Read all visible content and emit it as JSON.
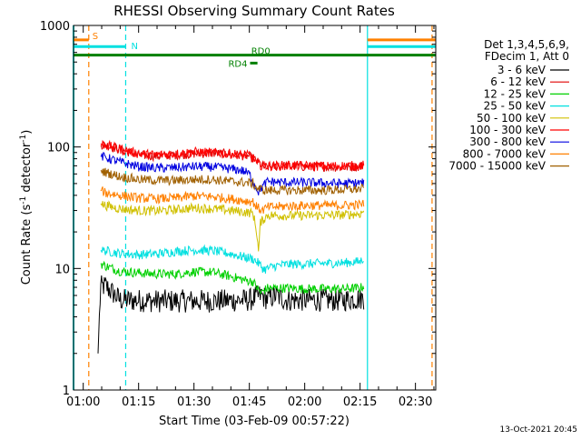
{
  "chart_data": {
    "type": "line",
    "title": "RHESSI Observing Summary Count Rates",
    "xlabel": "Start Time (03-Feb-09 00:57:22)",
    "ylabel_main": "Count Rate (s",
    "ylabel_sup1": "-1",
    "ylabel_mid": " detector",
    "ylabel_sup2": "-1",
    "ylabel_end": ")",
    "yscale": "log",
    "xlim": [
      57.37,
      155.5
    ],
    "ylim": [
      1,
      1000
    ],
    "x_ticks": [
      {
        "v": 60,
        "label": "01:00"
      },
      {
        "v": 75,
        "label": "01:15"
      },
      {
        "v": 90,
        "label": "01:30"
      },
      {
        "v": 105,
        "label": "01:45"
      },
      {
        "v": 120,
        "label": "02:00"
      },
      {
        "v": 135,
        "label": "02:15"
      },
      {
        "v": 150,
        "label": "02:30"
      }
    ],
    "y_ticks": [
      {
        "v": 1,
        "label": "1"
      },
      {
        "v": 10,
        "label": "10"
      },
      {
        "v": 100,
        "label": "100"
      },
      {
        "v": 1000,
        "label": "1000"
      }
    ],
    "legend": {
      "header": [
        "Det 1,3,4,5,6,9,",
        "FDecim 1, Att 0"
      ],
      "placement": "right"
    },
    "series": [
      {
        "name": "3 - 6 keV",
        "color": "#000000",
        "points": [
          [
            64,
            2
          ],
          [
            64.7,
            7
          ],
          [
            66,
            7.2
          ],
          [
            70,
            5.5
          ],
          [
            80,
            5.4
          ],
          [
            95,
            5.4
          ],
          [
            105,
            5.5
          ],
          [
            108,
            6.0
          ],
          [
            110,
            5.6
          ],
          [
            112,
            6.0
          ],
          [
            115,
            5.5
          ],
          [
            125,
            5.5
          ],
          [
            130,
            5.5
          ],
          [
            136,
            5.7
          ]
        ]
      },
      {
        "name": "6 - 12 keV",
        "color": "#e00000",
        "points": [
          [
            64.7,
            102
          ],
          [
            66,
            104
          ],
          [
            70,
            95
          ],
          [
            75,
            86
          ],
          [
            80,
            84
          ],
          [
            85,
            86
          ],
          [
            90,
            88
          ],
          [
            95,
            89
          ],
          [
            100,
            87
          ],
          [
            103,
            85
          ],
          [
            105,
            84
          ],
          [
            107,
            76
          ],
          [
            109,
            68
          ],
          [
            112,
            69
          ],
          [
            115,
            70
          ],
          [
            120,
            69
          ],
          [
            125,
            69
          ],
          [
            130,
            68
          ],
          [
            135,
            69
          ],
          [
            136,
            71
          ]
        ]
      },
      {
        "name": "12 - 25 keV",
        "color": "#00d000",
        "points": [
          [
            64.7,
            11
          ],
          [
            66,
            10.5
          ],
          [
            70,
            9.5
          ],
          [
            75,
            9.2
          ],
          [
            80,
            9.0
          ],
          [
            85,
            9.0
          ],
          [
            90,
            9.4
          ],
          [
            95,
            9.3
          ],
          [
            100,
            8.6
          ],
          [
            104,
            8.0
          ],
          [
            106,
            7.8
          ],
          [
            108,
            6.3
          ],
          [
            110,
            6.9
          ],
          [
            115,
            6.9
          ],
          [
            120,
            6.8
          ],
          [
            125,
            6.8
          ],
          [
            130,
            6.8
          ],
          [
            135,
            6.9
          ],
          [
            136,
            7.2
          ]
        ]
      },
      {
        "name": "25 - 50 keV",
        "color": "#00e0e0",
        "points": [
          [
            64.7,
            14
          ],
          [
            66,
            14
          ],
          [
            70,
            13.3
          ],
          [
            75,
            13
          ],
          [
            80,
            13.2
          ],
          [
            85,
            13.8
          ],
          [
            90,
            14.2
          ],
          [
            95,
            14.0
          ],
          [
            100,
            13.2
          ],
          [
            104,
            12.3
          ],
          [
            106,
            12.0
          ],
          [
            107.5,
            11.0
          ],
          [
            109,
            9.8
          ],
          [
            112,
            10.5
          ],
          [
            115,
            10.8
          ],
          [
            120,
            10.9
          ],
          [
            125,
            11.0
          ],
          [
            130,
            11.1
          ],
          [
            135,
            11.4
          ],
          [
            136,
            12.2
          ]
        ]
      },
      {
        "name": "50 - 100 keV",
        "color": "#d0c000",
        "points": [
          [
            64.7,
            34
          ],
          [
            66,
            33
          ],
          [
            70,
            31
          ],
          [
            75,
            30
          ],
          [
            80,
            29.8
          ],
          [
            85,
            30.5
          ],
          [
            90,
            31.5
          ],
          [
            95,
            31.0
          ],
          [
            100,
            30.0
          ],
          [
            104,
            29.0
          ],
          [
            106,
            28.5
          ],
          [
            107,
            20
          ],
          [
            107.5,
            13.5
          ],
          [
            108,
            24
          ],
          [
            110,
            27.5
          ],
          [
            115,
            27.2
          ],
          [
            120,
            27.3
          ],
          [
            125,
            27.4
          ],
          [
            130,
            27.6
          ],
          [
            135,
            28.2
          ],
          [
            136,
            29.8
          ]
        ]
      },
      {
        "name": "100 - 300 keV",
        "color": "#ff0000",
        "points": [
          [
            64.7,
            106
          ],
          [
            66,
            104
          ],
          [
            70,
            96
          ],
          [
            75,
            88
          ],
          [
            80,
            86
          ],
          [
            85,
            88
          ],
          [
            90,
            91
          ],
          [
            95,
            90
          ],
          [
            100,
            88
          ],
          [
            103,
            86
          ],
          [
            105,
            85
          ],
          [
            106.5,
            79
          ],
          [
            107,
            72
          ],
          [
            109,
            70
          ],
          [
            112,
            70
          ],
          [
            115,
            70.5
          ],
          [
            120,
            70
          ],
          [
            125,
            69.5
          ],
          [
            130,
            70
          ],
          [
            135,
            70.5
          ],
          [
            136,
            71
          ]
        ]
      },
      {
        "name": "300 - 800 keV",
        "color": "#0000e0",
        "points": [
          [
            64.7,
            84
          ],
          [
            66,
            82
          ],
          [
            70,
            75
          ],
          [
            75,
            69
          ],
          [
            80,
            67
          ],
          [
            85,
            67.5
          ],
          [
            90,
            69
          ],
          [
            95,
            68.5
          ],
          [
            100,
            66
          ],
          [
            103,
            64
          ],
          [
            105,
            60
          ],
          [
            106.5,
            48
          ],
          [
            107.5,
            43
          ],
          [
            108.5,
            47
          ],
          [
            110,
            52
          ],
          [
            115,
            51
          ],
          [
            120,
            51
          ],
          [
            125,
            50.5
          ],
          [
            130,
            50
          ],
          [
            135,
            50.5
          ],
          [
            136,
            51
          ]
        ]
      },
      {
        "name": "800 - 7000 keV",
        "color": "#ff8000",
        "points": [
          [
            64.7,
            44
          ],
          [
            66,
            42
          ],
          [
            70,
            40
          ],
          [
            75,
            38
          ],
          [
            80,
            37.5
          ],
          [
            85,
            38
          ],
          [
            90,
            39.5
          ],
          [
            95,
            39.0
          ],
          [
            100,
            37.5
          ],
          [
            104,
            36
          ],
          [
            106,
            35.5
          ],
          [
            107,
            32
          ],
          [
            108.5,
            30
          ],
          [
            110,
            32
          ],
          [
            115,
            32.5
          ],
          [
            120,
            33
          ],
          [
            125,
            33
          ],
          [
            130,
            33
          ],
          [
            135,
            33.5
          ],
          [
            136,
            34
          ]
        ]
      },
      {
        "name": "7000 - 15000 keV",
        "color": "#a06000",
        "points": [
          [
            64.7,
            64
          ],
          [
            66,
            62
          ],
          [
            70,
            57
          ],
          [
            75,
            54
          ],
          [
            80,
            53
          ],
          [
            85,
            53
          ],
          [
            90,
            54
          ],
          [
            95,
            54
          ],
          [
            100,
            52
          ],
          [
            104,
            51
          ],
          [
            106,
            50
          ],
          [
            107,
            46
          ],
          [
            109,
            44
          ],
          [
            112,
            44
          ],
          [
            115,
            44
          ],
          [
            120,
            44
          ],
          [
            125,
            44
          ],
          [
            130,
            44.5
          ],
          [
            135,
            45
          ],
          [
            136,
            45.5
          ]
        ]
      }
    ],
    "annotations": [
      {
        "id": "S",
        "label": "S",
        "color": "#ff8000",
        "x_start": 57.37,
        "x_end": 61.5,
        "y": 760
      },
      {
        "id": "N",
        "label": "N",
        "color": "#00e0e0",
        "x_start": 57.37,
        "x_end": 71.5,
        "y": 670
      },
      {
        "id": "S2",
        "label": "",
        "color": "#ff8000",
        "x_start": 137,
        "x_end": 155.5,
        "y": 760
      },
      {
        "id": "N2",
        "label": "",
        "color": "#00e0e0",
        "x_start": 137,
        "x_end": 155.5,
        "y": 670
      },
      {
        "id": "RD0",
        "label": "RD0",
        "color": "#008000",
        "x_start": 57.37,
        "x_end": 155.5,
        "y": 570
      },
      {
        "id": "RD4",
        "label": "RD4",
        "color": "#008000",
        "x_start": 105.2,
        "x_end": 107.2,
        "y": 490
      }
    ],
    "vertical_lines": [
      {
        "x": 61.5,
        "color": "#ff8000",
        "dash": true
      },
      {
        "x": 71.5,
        "color": "#00e0e0",
        "dash": true
      },
      {
        "x": 137,
        "color": "#00e0e0",
        "dash": false
      },
      {
        "x": 154.5,
        "color": "#ff8000",
        "dash": true
      }
    ],
    "footer_date": "13-Oct-2021 20:45"
  }
}
